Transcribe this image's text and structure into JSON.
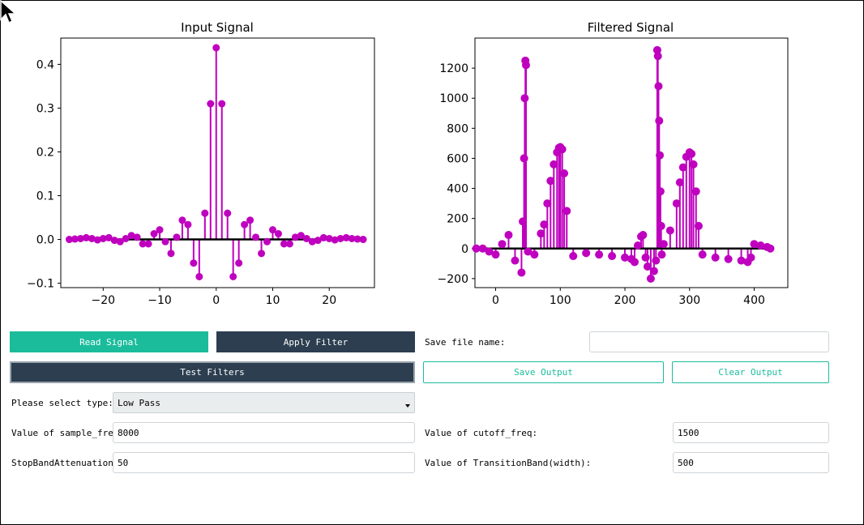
{
  "charts": {
    "input": {
      "title": "Input Signal"
    },
    "filtered": {
      "title": "Filtered Signal"
    }
  },
  "buttons": {
    "read_signal": "Read Signal",
    "apply_filter": "Apply Filter",
    "test_filters": "Test Filters",
    "save_output": "Save Output",
    "clear_output": "Clear Output"
  },
  "form": {
    "save_file_label": "Save file name:",
    "save_file_value": "",
    "type_label": "Please select type:",
    "type_value": "Low Pass",
    "sample_freq_label": "Value of sample_freq:",
    "sample_freq_value": "8000",
    "cutoff_freq_label": "Value of cutoff_freq:",
    "cutoff_freq_value": "1500",
    "stopband_label": "StopBandAttenuation:",
    "stopband_value": "50",
    "transition_label": "Value of TransitionBand(width):",
    "transition_value": "500"
  },
  "colors": {
    "stem": "#bf00bf",
    "baseline": "#000000",
    "teal": "#1abc9c",
    "dark": "#2c3e50"
  },
  "chart_data": [
    {
      "type": "stem",
      "title": "Input Signal",
      "xlim": [
        -27.5,
        28
      ],
      "ylim": [
        -0.11,
        0.46
      ],
      "xticks": [
        -20,
        -10,
        0,
        10,
        20
      ],
      "yticks": [
        -0.1,
        0.0,
        0.1,
        0.2,
        0.3,
        0.4
      ],
      "x": [
        -26,
        -25,
        -24,
        -23,
        -22,
        -21,
        -20,
        -19,
        -18,
        -17,
        -16,
        -15,
        -14,
        -13,
        -12,
        -11,
        -10,
        -9,
        -8,
        -7,
        -6,
        -5,
        -4,
        -3,
        -2,
        -1,
        0,
        1,
        2,
        3,
        4,
        5,
        6,
        7,
        8,
        9,
        10,
        11,
        12,
        13,
        14,
        15,
        16,
        17,
        18,
        19,
        20,
        21,
        22,
        23,
        24,
        25,
        26
      ],
      "y": [
        0.0,
        0.001,
        0.002,
        0.004,
        0.002,
        -0.001,
        0.002,
        0.004,
        -0.002,
        -0.005,
        0.002,
        0.009,
        0.005,
        -0.01,
        -0.01,
        0.013,
        0.022,
        -0.005,
        -0.032,
        0.005,
        0.044,
        0.034,
        -0.054,
        -0.085,
        0.06,
        0.31,
        0.438,
        0.31,
        0.06,
        -0.085,
        -0.054,
        0.034,
        0.044,
        0.005,
        -0.032,
        -0.005,
        0.022,
        0.013,
        -0.01,
        -0.01,
        0.005,
        0.009,
        0.002,
        -0.005,
        -0.002,
        0.004,
        0.002,
        -0.001,
        0.002,
        0.004,
        0.002,
        0.001,
        0.0
      ]
    },
    {
      "type": "stem",
      "title": "Filtered Signal",
      "xlim": [
        -32,
        452
      ],
      "ylim": [
        -260,
        1400
      ],
      "xticks": [
        0,
        100,
        200,
        300,
        400
      ],
      "yticks": [
        -200,
        0,
        200,
        400,
        600,
        800,
        1000,
        1200
      ],
      "x": [
        -30,
        -20,
        -10,
        0,
        10,
        20,
        30,
        40,
        42,
        44,
        45,
        46,
        47,
        50,
        60,
        70,
        75,
        80,
        85,
        90,
        95,
        98,
        100,
        103,
        106,
        110,
        120,
        140,
        160,
        180,
        200,
        210,
        215,
        220,
        225,
        228,
        232,
        235,
        240,
        245,
        248,
        250,
        251,
        252,
        253,
        254,
        255,
        256,
        257,
        260,
        270,
        280,
        285,
        290,
        295,
        300,
        303,
        306,
        310,
        314,
        320,
        340,
        360,
        380,
        390,
        395,
        400,
        410,
        420,
        425
      ],
      "y": [
        0,
        0,
        -20,
        -40,
        30,
        90,
        -80,
        -160,
        180,
        600,
        1000,
        1250,
        1220,
        -20,
        -40,
        100,
        160,
        300,
        450,
        560,
        640,
        670,
        675,
        660,
        500,
        250,
        -50,
        -30,
        -40,
        -50,
        -60,
        -70,
        -90,
        20,
        80,
        90,
        -60,
        -120,
        -200,
        -150,
        -80,
        1320,
        1280,
        1080,
        850,
        620,
        380,
        150,
        -40,
        30,
        120,
        300,
        440,
        540,
        610,
        640,
        630,
        560,
        380,
        150,
        -40,
        -60,
        -70,
        -80,
        -90,
        -60,
        30,
        20,
        10,
        0
      ]
    }
  ]
}
